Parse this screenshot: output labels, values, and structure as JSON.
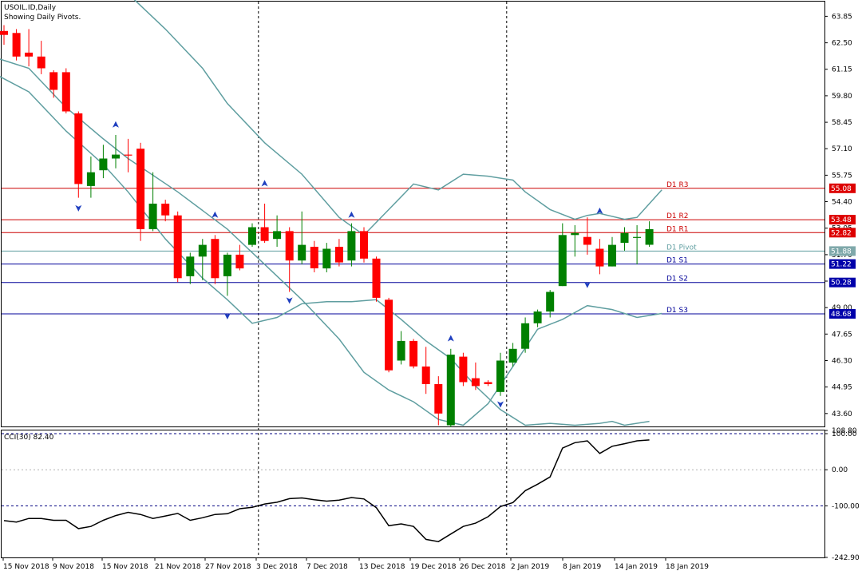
{
  "header": {
    "symbol_line": "USOIL.ID,Daily",
    "subtitle": "Showing Daily Pivots."
  },
  "colors": {
    "bull": "#008000",
    "bear": "#ff0000",
    "bands": "#5f9ea0",
    "resistance": "#cc0000",
    "support": "#000099",
    "pivot": "#5f9ea0",
    "cci": "#000000"
  },
  "chart_data": [
    {
      "type": "candlestick",
      "title": "USOIL.ID,Daily",
      "subtitle": "Showing Daily Pivots.",
      "y_ticks": [
        "63.85",
        "62.50",
        "61.15",
        "59.80",
        "58.45",
        "57.10",
        "55.75",
        "54.40",
        "53.05",
        "51.70",
        "50.35",
        "49.00",
        "47.65",
        "46.30",
        "44.95",
        "43.60"
      ],
      "x_ticks": [
        "15 Nov 2018",
        "9 Nov 2018",
        "15 Nov 2018",
        "21 Nov 2018",
        "27 Nov 2018",
        "3 Dec 2018",
        "7 Dec 2018",
        "13 Dec 2018",
        "19 Dec 2018",
        "26 Dec 2018",
        "2 Jan 2019",
        "8 Jan 2019",
        "14 Jan 2019",
        "18 Jan 2019"
      ],
      "ylim": [
        42.9,
        64.6
      ],
      "grid": false,
      "candles": [
        {
          "o": 63.1,
          "h": 63.4,
          "l": 62.4,
          "c": 62.9
        },
        {
          "o": 63.0,
          "h": 63.2,
          "l": 61.6,
          "c": 61.8
        },
        {
          "o": 62.0,
          "h": 63.2,
          "l": 61.3,
          "c": 61.8
        },
        {
          "o": 61.8,
          "h": 62.6,
          "l": 60.9,
          "c": 61.2
        },
        {
          "o": 61.0,
          "h": 61.1,
          "l": 59.7,
          "c": 60.1
        },
        {
          "o": 61.0,
          "h": 61.2,
          "l": 58.9,
          "c": 59.0
        },
        {
          "o": 58.9,
          "h": 59.0,
          "l": 54.6,
          "c": 55.3
        },
        {
          "o": 55.2,
          "h": 56.7,
          "l": 54.6,
          "c": 55.9
        },
        {
          "o": 56.0,
          "h": 57.3,
          "l": 55.6,
          "c": 56.6
        },
        {
          "o": 56.6,
          "h": 57.8,
          "l": 56.1,
          "c": 56.8
        },
        {
          "o": 56.8,
          "h": 57.6,
          "l": 55.9,
          "c": 56.75
        },
        {
          "o": 57.1,
          "h": 57.4,
          "l": 52.4,
          "c": 53.0
        },
        {
          "o": 53.0,
          "h": 55.9,
          "l": 52.9,
          "c": 54.3
        },
        {
          "o": 54.3,
          "h": 54.5,
          "l": 53.4,
          "c": 53.7
        },
        {
          "o": 53.7,
          "h": 53.9,
          "l": 50.3,
          "c": 50.5
        },
        {
          "o": 50.6,
          "h": 51.8,
          "l": 50.2,
          "c": 51.6
        },
        {
          "o": 51.6,
          "h": 52.5,
          "l": 50.4,
          "c": 52.2
        },
        {
          "o": 52.5,
          "h": 52.7,
          "l": 50.2,
          "c": 50.5
        },
        {
          "o": 50.6,
          "h": 51.8,
          "l": 49.6,
          "c": 51.7
        },
        {
          "o": 51.7,
          "h": 52.2,
          "l": 50.9,
          "c": 51.0
        },
        {
          "o": 52.2,
          "h": 53.3,
          "l": 52.1,
          "c": 53.1
        },
        {
          "o": 53.1,
          "h": 54.3,
          "l": 52.3,
          "c": 52.4
        },
        {
          "o": 52.5,
          "h": 53.7,
          "l": 52.1,
          "c": 52.9
        },
        {
          "o": 52.9,
          "h": 53.1,
          "l": 49.8,
          "c": 51.4
        },
        {
          "o": 51.4,
          "h": 53.9,
          "l": 51.2,
          "c": 52.2
        },
        {
          "o": 52.1,
          "h": 52.4,
          "l": 50.8,
          "c": 51.0
        },
        {
          "o": 51.0,
          "h": 52.3,
          "l": 50.8,
          "c": 52.0
        },
        {
          "o": 52.1,
          "h": 52.5,
          "l": 51.1,
          "c": 51.3
        },
        {
          "o": 51.4,
          "h": 53.3,
          "l": 51.1,
          "c": 52.9
        },
        {
          "o": 52.9,
          "h": 53.1,
          "l": 51.3,
          "c": 51.5
        },
        {
          "o": 51.5,
          "h": 51.6,
          "l": 49.3,
          "c": 49.5
        },
        {
          "o": 49.4,
          "h": 49.5,
          "l": 45.7,
          "c": 45.8
        },
        {
          "o": 46.3,
          "h": 47.8,
          "l": 46.1,
          "c": 47.3
        },
        {
          "o": 47.3,
          "h": 47.4,
          "l": 45.9,
          "c": 46.0
        },
        {
          "o": 46.0,
          "h": 47.0,
          "l": 44.6,
          "c": 45.1
        },
        {
          "o": 45.1,
          "h": 45.5,
          "l": 43.0,
          "c": 43.6
        },
        {
          "o": 43.0,
          "h": 46.9,
          "l": 42.9,
          "c": 46.6
        },
        {
          "o": 46.5,
          "h": 46.7,
          "l": 45.0,
          "c": 45.2
        },
        {
          "o": 45.4,
          "h": 46.2,
          "l": 44.8,
          "c": 45.0
        },
        {
          "o": 45.2,
          "h": 45.3,
          "l": 45.0,
          "c": 45.1
        },
        {
          "o": 44.7,
          "h": 46.7,
          "l": 44.5,
          "c": 46.3
        },
        {
          "o": 46.2,
          "h": 47.2,
          "l": 46.0,
          "c": 46.9
        },
        {
          "o": 46.9,
          "h": 48.5,
          "l": 46.7,
          "c": 48.2
        },
        {
          "o": 48.2,
          "h": 48.9,
          "l": 48.0,
          "c": 48.8
        },
        {
          "o": 48.8,
          "h": 49.9,
          "l": 48.5,
          "c": 49.8
        },
        {
          "o": 50.1,
          "h": 53.3,
          "l": 50.1,
          "c": 52.7
        },
        {
          "o": 52.7,
          "h": 53.2,
          "l": 51.6,
          "c": 52.8
        },
        {
          "o": 52.6,
          "h": 53.6,
          "l": 51.7,
          "c": 52.2
        },
        {
          "o": 52.0,
          "h": 52.5,
          "l": 50.7,
          "c": 51.1
        },
        {
          "o": 51.1,
          "h": 52.6,
          "l": 51.1,
          "c": 52.2
        },
        {
          "o": 52.3,
          "h": 53.1,
          "l": 51.9,
          "c": 52.8
        },
        {
          "o": 52.6,
          "h": 53.2,
          "l": 51.2,
          "c": 52.6
        },
        {
          "o": 52.2,
          "h": 53.4,
          "l": 52.1,
          "c": 53.0
        }
      ],
      "bollinger": {
        "upper": [
          [
            -4,
            66.5
          ],
          [
            8,
            66.8
          ],
          [
            10,
            65.0
          ],
          [
            13,
            63.2
          ],
          [
            16,
            61.2
          ],
          [
            18,
            59.4
          ],
          [
            21,
            57.4
          ],
          [
            24,
            55.8
          ],
          [
            27,
            53.6
          ],
          [
            29,
            52.7
          ],
          [
            31,
            54.0
          ],
          [
            33,
            55.3
          ],
          [
            35,
            55.0
          ],
          [
            37,
            55.8
          ],
          [
            39,
            55.7
          ],
          [
            41,
            55.5
          ],
          [
            42,
            54.9
          ],
          [
            44,
            54.0
          ],
          [
            46,
            53.5
          ],
          [
            47,
            53.7
          ],
          [
            48,
            53.8
          ],
          [
            50,
            53.5
          ],
          [
            51,
            53.6
          ],
          [
            52,
            54.3
          ],
          [
            53,
            55.0
          ]
        ],
        "middle": [
          [
            -4,
            62.0
          ],
          [
            2,
            60.0
          ],
          [
            5,
            58.0
          ],
          [
            8,
            56.3
          ],
          [
            10,
            54.9
          ],
          [
            13,
            52.5
          ],
          [
            16,
            50.5
          ],
          [
            18,
            49.4
          ],
          [
            20,
            48.2
          ],
          [
            22,
            48.5
          ],
          [
            24,
            49.2
          ],
          [
            26,
            49.3
          ],
          [
            28,
            49.3
          ],
          [
            30,
            49.4
          ],
          [
            32,
            48.4
          ],
          [
            34,
            47.3
          ],
          [
            36,
            46.4
          ],
          [
            38,
            45.0
          ],
          [
            40,
            43.8
          ],
          [
            42,
            43.0
          ],
          [
            44,
            43.1
          ],
          [
            46,
            43.0
          ],
          [
            48,
            43.1
          ],
          [
            49,
            43.2
          ],
          [
            50,
            43.0
          ],
          [
            52,
            43.2
          ]
        ],
        "lower": [
          [
            -4,
            62.4
          ],
          [
            2,
            61.2
          ],
          [
            5,
            59.2
          ],
          [
            8,
            57.6
          ],
          [
            10,
            56.6
          ],
          [
            14,
            54.9
          ],
          [
            18,
            53.0
          ],
          [
            21,
            51.2
          ],
          [
            24,
            49.4
          ],
          [
            27,
            47.4
          ],
          [
            29,
            45.7
          ],
          [
            31,
            44.8
          ],
          [
            33,
            44.2
          ],
          [
            35,
            43.3
          ],
          [
            37,
            43.0
          ],
          [
            39,
            44.1
          ],
          [
            41,
            46.0
          ],
          [
            43,
            47.9
          ],
          [
            45,
            48.4
          ],
          [
            47,
            49.1
          ],
          [
            49,
            48.9
          ],
          [
            51,
            48.5
          ],
          [
            53,
            48.7
          ]
        ]
      },
      "pivots": {
        "R3": {
          "label": "D1 R3",
          "value": 55.08,
          "badge": "55.08"
        },
        "R2": {
          "label": "D1 R2",
          "value": 53.48,
          "badge": "53.48"
        },
        "R1": {
          "label": "D1 R1",
          "value": 52.82,
          "badge": "52.82"
        },
        "P": {
          "label": "D1 Pivot",
          "value": 51.88,
          "badge": "51.88"
        },
        "S1": {
          "label": "D1 S1",
          "value": 51.22,
          "badge": "51.22"
        },
        "S2": {
          "label": "D1 S2",
          "value": 50.28,
          "badge": "50.28"
        },
        "S3": {
          "label": "D1 S3",
          "value": 48.68,
          "badge": "48.68"
        }
      },
      "fractals_up": [
        [
          9,
          58.3
        ],
        [
          17,
          53.7
        ],
        [
          21,
          55.3
        ],
        [
          28,
          53.7
        ],
        [
          36,
          47.4
        ],
        [
          48,
          53.9
        ]
      ],
      "fractals_down": [
        [
          6,
          54.1
        ],
        [
          18,
          48.6
        ],
        [
          23,
          49.4
        ],
        [
          40,
          44.1
        ],
        [
          47,
          50.2
        ]
      ],
      "period_separator_indices": [
        20.5,
        40.5
      ]
    },
    {
      "type": "line",
      "label": "CCI(30) 82.40",
      "y_ticks": [
        "108.80",
        "100.00",
        "0.00",
        "-100.00",
        "-242.90"
      ],
      "ylim": [
        -242.9,
        108.8
      ],
      "reference_lines": [
        100,
        0,
        -100
      ],
      "values": [
        -141,
        -145,
        -135,
        -135,
        -140,
        -140,
        -163,
        -157,
        -140,
        -127,
        -118,
        -124,
        -135,
        -128,
        -121,
        -140,
        -133,
        -124,
        -122,
        -108,
        -104,
        -95,
        -90,
        -80,
        -78,
        -83,
        -87,
        -84,
        -77,
        -81,
        -105,
        -155,
        -150,
        -157,
        -193,
        -199,
        -178,
        -157,
        -148,
        -130,
        -102,
        -91,
        -58,
        -40,
        -20,
        60,
        75,
        80,
        45,
        65,
        72,
        80,
        82.4
      ]
    }
  ]
}
